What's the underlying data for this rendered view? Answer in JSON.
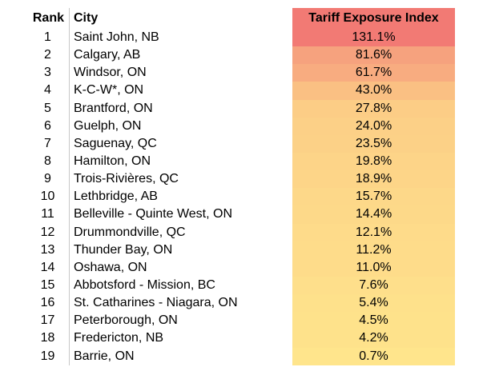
{
  "table": {
    "headers": {
      "rank": "Rank",
      "city": "City",
      "index": "Tariff Exposure Index"
    },
    "header_color": "#F27A74",
    "rows": [
      {
        "rank": "1",
        "city": "Saint John, NB",
        "index": "131.1%",
        "color": "#F27A74"
      },
      {
        "rank": "2",
        "city": "Calgary, AB",
        "index": "81.6%",
        "color": "#F6A27E"
      },
      {
        "rank": "3",
        "city": "Windsor, ON",
        "index": "61.7%",
        "color": "#F8AC80"
      },
      {
        "rank": "4",
        "city": "K-C-W*, ON",
        "index": "43.0%",
        "color": "#FAC083"
      },
      {
        "rank": "5",
        "city": "Brantford, ON",
        "index": "27.8%",
        "color": "#FCCD86"
      },
      {
        "rank": "6",
        "city": "Guelph, ON",
        "index": "24.0%",
        "color": "#FCD087"
      },
      {
        "rank": "7",
        "city": "Saguenay, QC",
        "index": "23.5%",
        "color": "#FCD187"
      },
      {
        "rank": "8",
        "city": "Hamilton, ON",
        "index": "19.8%",
        "color": "#FDD488"
      },
      {
        "rank": "9",
        "city": "Trois-Rivières, QC",
        "index": "18.9%",
        "color": "#FDD588"
      },
      {
        "rank": "10",
        "city": "Lethbridge, AB",
        "index": "15.7%",
        "color": "#FDD889"
      },
      {
        "rank": "11",
        "city": "Belleville - Quinte West, ON",
        "index": "14.4%",
        "color": "#FDD989"
      },
      {
        "rank": "12",
        "city": "Drummondville, QC",
        "index": "12.1%",
        "color": "#FEDB8A"
      },
      {
        "rank": "13",
        "city": "Thunder Bay, ON",
        "index": "11.2%",
        "color": "#FEDC8A"
      },
      {
        "rank": "14",
        "city": "Oshawa, ON",
        "index": "11.0%",
        "color": "#FEDC8A"
      },
      {
        "rank": "15",
        "city": "Abbotsford - Mission, BC",
        "index": "7.6%",
        "color": "#FEDF8B"
      },
      {
        "rank": "16",
        "city": "St. Catharines - Niagara, ON",
        "index": "5.4%",
        "color": "#FEE18B"
      },
      {
        "rank": "17",
        "city": "Peterborough, ON",
        "index": "4.5%",
        "color": "#FEE28B"
      },
      {
        "rank": "18",
        "city": "Fredericton, NB",
        "index": "4.2%",
        "color": "#FEE28B"
      },
      {
        "rank": "19",
        "city": "Barrie, ON",
        "index": "0.7%",
        "color": "#FFE58C"
      }
    ]
  }
}
